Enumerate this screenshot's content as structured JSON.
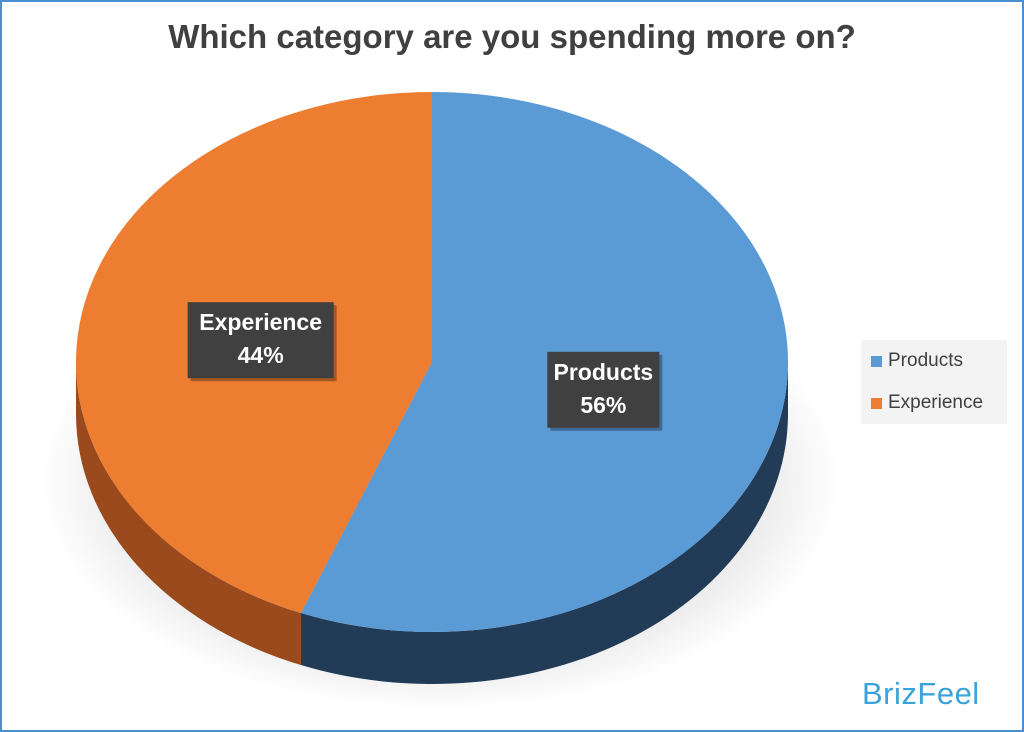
{
  "chart_data": {
    "type": "pie",
    "title": "Which category are you spending more on?",
    "categories": [
      "Products",
      "Experience"
    ],
    "values": [
      56,
      44
    ],
    "unit": "%",
    "data_labels": [
      {
        "name": "Products",
        "value": "56%"
      },
      {
        "name": "Experience",
        "value": "44%"
      }
    ],
    "colors": [
      "#5b9bd5",
      "#ed7d31"
    ],
    "side_colors": [
      "#223c58",
      "#9a4a1c"
    ],
    "style": "3d",
    "legend": {
      "position": "right",
      "items": [
        {
          "label": "Products",
          "color": "#5b9bd5"
        },
        {
          "label": "Experience",
          "color": "#ed7d31"
        }
      ]
    }
  },
  "branding": {
    "logo_text": "BrizFeel"
  },
  "colors": {
    "frame": "#4a90d0",
    "label_box": "#404040",
    "brand": "#3aa3dc"
  }
}
